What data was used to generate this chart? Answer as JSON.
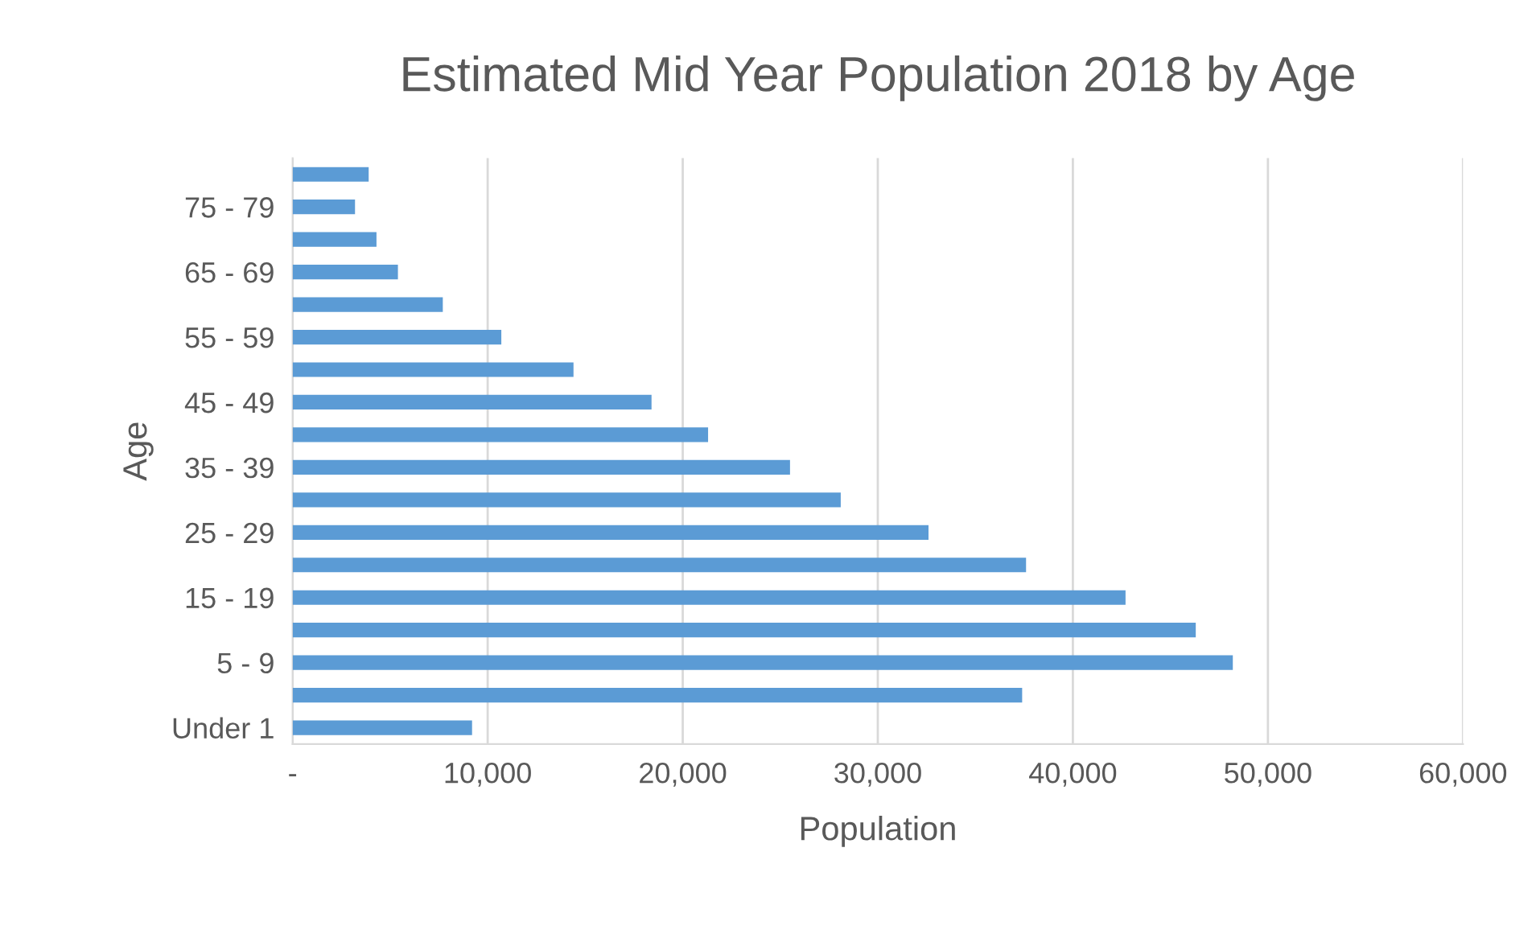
{
  "chart_data": {
    "type": "bar",
    "orientation": "horizontal",
    "title": "Estimated Mid Year Population 2018 by Age",
    "xlabel": "Population",
    "ylabel": "Age",
    "categories": [
      null,
      "75 - 79",
      null,
      "65 - 69",
      null,
      "55 - 59",
      null,
      "45 - 49",
      null,
      "35 - 39",
      null,
      "25 - 29",
      null,
      "15 - 19",
      null,
      "5 - 9",
      null,
      "Under 1"
    ],
    "values": [
      3900,
      3200,
      4300,
      5400,
      7700,
      10700,
      14400,
      18400,
      21300,
      25500,
      28100,
      32600,
      37600,
      42700,
      46300,
      48200,
      37400,
      9200
    ],
    "color": "#5b9bd5",
    "xlim": [
      0,
      60000
    ],
    "xticks": [
      {
        "value": 0,
        "label": "-"
      },
      {
        "value": 10000,
        "label": "10,000"
      },
      {
        "value": 20000,
        "label": "20,000"
      },
      {
        "value": 30000,
        "label": "30,000"
      },
      {
        "value": 40000,
        "label": "40,000"
      },
      {
        "value": 50000,
        "label": "50,000"
      },
      {
        "value": 60000,
        "label": "60,000"
      }
    ],
    "grid": "x",
    "legend": false
  }
}
